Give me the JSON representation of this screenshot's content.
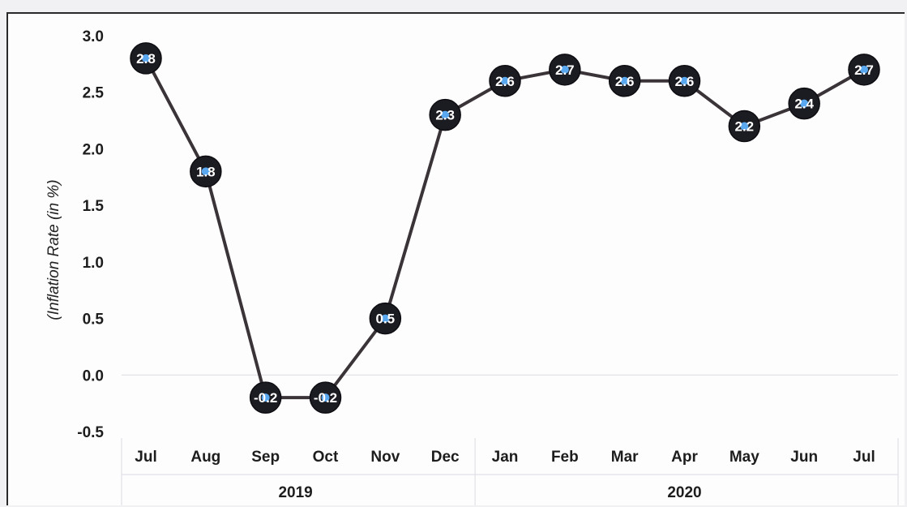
{
  "chart_data": {
    "type": "line",
    "ylabel": "(Inflation Rate (in %)",
    "ylim": [
      -0.5,
      3.0
    ],
    "yticks": [
      "3.0",
      "2.5",
      "2.0",
      "1.5",
      "1.0",
      "0.5",
      "0.0",
      "-0.5"
    ],
    "categories": [
      "Jul",
      "Aug",
      "Sep",
      "Oct",
      "Nov",
      "Dec",
      "Jan",
      "Feb",
      "Mar",
      "Apr",
      "May",
      "Jun",
      "Jul"
    ],
    "groups": [
      {
        "label": "2019",
        "start": 0,
        "end": 5
      },
      {
        "label": "2020",
        "start": 6,
        "end": 12
      }
    ],
    "series": [
      {
        "values": [
          2.8,
          1.8,
          -0.2,
          -0.2,
          0.5,
          2.3,
          2.6,
          2.7,
          2.6,
          2.6,
          2.2,
          2.4,
          2.7
        ],
        "data_labels": [
          "2.8",
          "1.8",
          "-0.2",
          "-0.2",
          "0.5",
          "2.3",
          "2.6",
          "2.7",
          "2.6",
          "2.6",
          "2.2",
          "2.4",
          "2.7"
        ]
      }
    ],
    "grid": false,
    "colors": {
      "line": "#3a3438",
      "marker": "#1b1b22",
      "marker_center": "#5aa8f0",
      "label": "#ffffff",
      "divider": "#dcdce4"
    }
  }
}
